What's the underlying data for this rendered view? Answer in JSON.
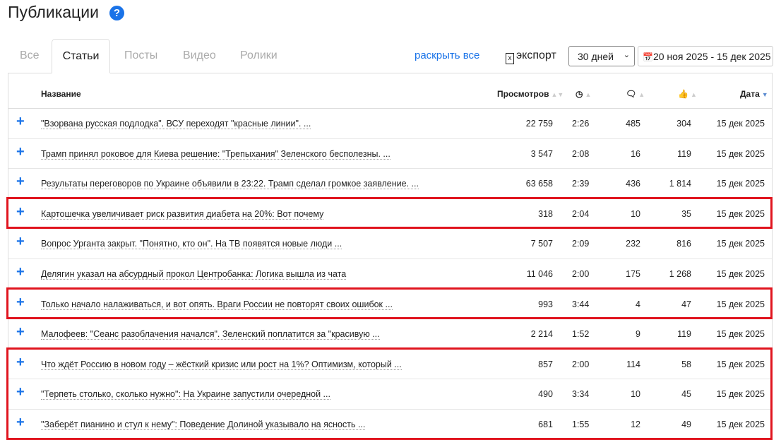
{
  "header": {
    "title": "Публикации",
    "help_icon": "?"
  },
  "tabs": [
    {
      "label": "Все"
    },
    {
      "label": "Статьи",
      "active": true
    },
    {
      "label": "Посты"
    },
    {
      "label": "Видео"
    },
    {
      "label": "Ролики"
    }
  ],
  "toolbar": {
    "expand_all": "раскрыть все",
    "export": "экспорт",
    "period": "30 дней",
    "date_range": "20 ноя 2025 - 15 дек 2025"
  },
  "columns": {
    "name": "Название",
    "views": "Просмотров",
    "time_icon": "clock-icon",
    "comments_icon": "comments-icon",
    "likes_icon": "thumbs-up-icon",
    "date": "Дата"
  },
  "rows": [
    {
      "title": "\"Взорвана русская подлодка\". ВСУ переходят \"красные линии\". ...",
      "views": "22 759",
      "time": "2:26",
      "comments": "485",
      "likes": "304",
      "date": "15 дек 2025"
    },
    {
      "title": "Трамп принял роковое для Киева решение: \"Трепыхания\" Зеленского бесполезны. ...",
      "views": "3 547",
      "time": "2:08",
      "comments": "16",
      "likes": "119",
      "date": "15 дек 2025"
    },
    {
      "title": "Результаты переговоров по Украине объявили в 23:22. Трамп сделал громкое заявление. ...",
      "views": "63 658",
      "time": "2:39",
      "comments": "436",
      "likes": "1 814",
      "date": "15 дек 2025"
    },
    {
      "title": "Картошечка увеличивает риск развития диабета на 20%: Вот почему",
      "views": "318",
      "time": "2:04",
      "comments": "10",
      "likes": "35",
      "date": "15 дек 2025",
      "highlighted": true
    },
    {
      "title": "Вопрос Урганта закрыт. \"Понятно, кто он\". На ТВ появятся новые люди ...",
      "views": "7 507",
      "time": "2:09",
      "comments": "232",
      "likes": "816",
      "date": "15 дек 2025"
    },
    {
      "title": "Делягин указал на абсурдный прокол Центробанка: Логика вышла из чата",
      "views": "11 046",
      "time": "2:00",
      "comments": "175",
      "likes": "1 268",
      "date": "15 дек 2025"
    },
    {
      "title": "Только начало налаживаться, и вот опять. Враги России не повторят своих ошибок ...",
      "views": "993",
      "time": "3:44",
      "comments": "4",
      "likes": "47",
      "date": "15 дек 2025",
      "highlighted": true
    },
    {
      "title": "Малофеев: \"Сеанс разоблачения начался\". Зеленский поплатится за \"красивую ...",
      "views": "2 214",
      "time": "1:52",
      "comments": "9",
      "likes": "119",
      "date": "15 дек 2025"
    },
    {
      "title": "Что ждёт Россию в новом году – жёсткий кризис или рост на 1%? Оптимизм, который ...",
      "views": "857",
      "time": "2:00",
      "comments": "114",
      "likes": "58",
      "date": "15 дек 2025",
      "highlighted": true
    },
    {
      "title": "\"Терпеть столько, сколько нужно\": На Украине запустили очередной ...",
      "views": "490",
      "time": "3:34",
      "comments": "10",
      "likes": "45",
      "date": "15 дек 2025",
      "highlighted": true
    },
    {
      "title": "\"Заберёт пианино и стул к нему\": Поведение Долиной указывало на ясность ...",
      "views": "681",
      "time": "1:55",
      "comments": "12",
      "likes": "49",
      "date": "15 дек 2025",
      "highlighted": true
    }
  ],
  "colors": {
    "accent": "#1a73e8",
    "highlight": "#e0141e"
  }
}
